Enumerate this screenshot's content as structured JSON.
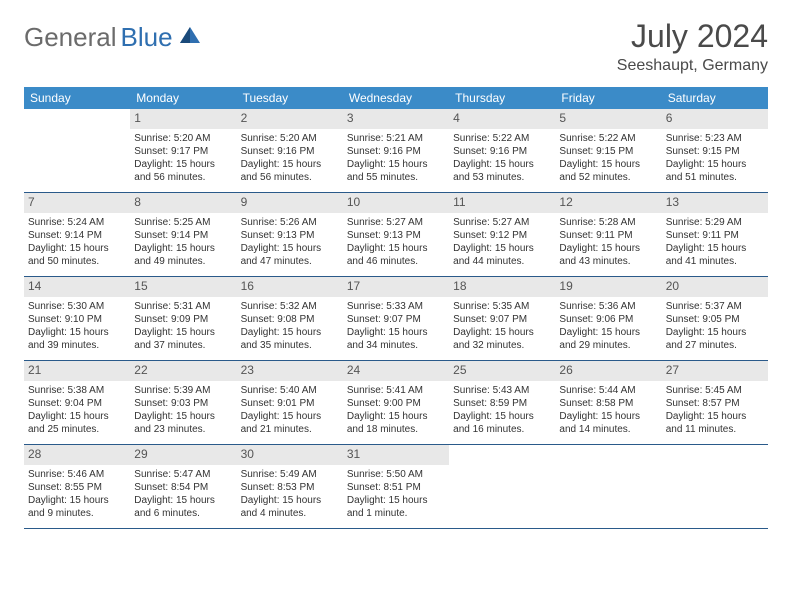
{
  "logo": {
    "textGray": "General",
    "textBlue": "Blue"
  },
  "title": "July 2024",
  "location": "Seeshaupt, Germany",
  "colors": {
    "headerBg": "#3b8bc8",
    "headerText": "#ffffff",
    "dayNumBg": "#e8e8e8",
    "borderColor": "#2a5a8a",
    "logoGray": "#6b6b6b",
    "logoBlue": "#2f6fb0"
  },
  "dayNames": [
    "Sunday",
    "Monday",
    "Tuesday",
    "Wednesday",
    "Thursday",
    "Friday",
    "Saturday"
  ],
  "startOffset": 1,
  "days": [
    {
      "n": 1,
      "sr": "5:20 AM",
      "ss": "9:17 PM",
      "dl": "15 hours and 56 minutes."
    },
    {
      "n": 2,
      "sr": "5:20 AM",
      "ss": "9:16 PM",
      "dl": "15 hours and 56 minutes."
    },
    {
      "n": 3,
      "sr": "5:21 AM",
      "ss": "9:16 PM",
      "dl": "15 hours and 55 minutes."
    },
    {
      "n": 4,
      "sr": "5:22 AM",
      "ss": "9:16 PM",
      "dl": "15 hours and 53 minutes."
    },
    {
      "n": 5,
      "sr": "5:22 AM",
      "ss": "9:15 PM",
      "dl": "15 hours and 52 minutes."
    },
    {
      "n": 6,
      "sr": "5:23 AM",
      "ss": "9:15 PM",
      "dl": "15 hours and 51 minutes."
    },
    {
      "n": 7,
      "sr": "5:24 AM",
      "ss": "9:14 PM",
      "dl": "15 hours and 50 minutes."
    },
    {
      "n": 8,
      "sr": "5:25 AM",
      "ss": "9:14 PM",
      "dl": "15 hours and 49 minutes."
    },
    {
      "n": 9,
      "sr": "5:26 AM",
      "ss": "9:13 PM",
      "dl": "15 hours and 47 minutes."
    },
    {
      "n": 10,
      "sr": "5:27 AM",
      "ss": "9:13 PM",
      "dl": "15 hours and 46 minutes."
    },
    {
      "n": 11,
      "sr": "5:27 AM",
      "ss": "9:12 PM",
      "dl": "15 hours and 44 minutes."
    },
    {
      "n": 12,
      "sr": "5:28 AM",
      "ss": "9:11 PM",
      "dl": "15 hours and 43 minutes."
    },
    {
      "n": 13,
      "sr": "5:29 AM",
      "ss": "9:11 PM",
      "dl": "15 hours and 41 minutes."
    },
    {
      "n": 14,
      "sr": "5:30 AM",
      "ss": "9:10 PM",
      "dl": "15 hours and 39 minutes."
    },
    {
      "n": 15,
      "sr": "5:31 AM",
      "ss": "9:09 PM",
      "dl": "15 hours and 37 minutes."
    },
    {
      "n": 16,
      "sr": "5:32 AM",
      "ss": "9:08 PM",
      "dl": "15 hours and 35 minutes."
    },
    {
      "n": 17,
      "sr": "5:33 AM",
      "ss": "9:07 PM",
      "dl": "15 hours and 34 minutes."
    },
    {
      "n": 18,
      "sr": "5:35 AM",
      "ss": "9:07 PM",
      "dl": "15 hours and 32 minutes."
    },
    {
      "n": 19,
      "sr": "5:36 AM",
      "ss": "9:06 PM",
      "dl": "15 hours and 29 minutes."
    },
    {
      "n": 20,
      "sr": "5:37 AM",
      "ss": "9:05 PM",
      "dl": "15 hours and 27 minutes."
    },
    {
      "n": 21,
      "sr": "5:38 AM",
      "ss": "9:04 PM",
      "dl": "15 hours and 25 minutes."
    },
    {
      "n": 22,
      "sr": "5:39 AM",
      "ss": "9:03 PM",
      "dl": "15 hours and 23 minutes."
    },
    {
      "n": 23,
      "sr": "5:40 AM",
      "ss": "9:01 PM",
      "dl": "15 hours and 21 minutes."
    },
    {
      "n": 24,
      "sr": "5:41 AM",
      "ss": "9:00 PM",
      "dl": "15 hours and 18 minutes."
    },
    {
      "n": 25,
      "sr": "5:43 AM",
      "ss": "8:59 PM",
      "dl": "15 hours and 16 minutes."
    },
    {
      "n": 26,
      "sr": "5:44 AM",
      "ss": "8:58 PM",
      "dl": "15 hours and 14 minutes."
    },
    {
      "n": 27,
      "sr": "5:45 AM",
      "ss": "8:57 PM",
      "dl": "15 hours and 11 minutes."
    },
    {
      "n": 28,
      "sr": "5:46 AM",
      "ss": "8:55 PM",
      "dl": "15 hours and 9 minutes."
    },
    {
      "n": 29,
      "sr": "5:47 AM",
      "ss": "8:54 PM",
      "dl": "15 hours and 6 minutes."
    },
    {
      "n": 30,
      "sr": "5:49 AM",
      "ss": "8:53 PM",
      "dl": "15 hours and 4 minutes."
    },
    {
      "n": 31,
      "sr": "5:50 AM",
      "ss": "8:51 PM",
      "dl": "15 hours and 1 minute."
    }
  ],
  "labels": {
    "sunrise": "Sunrise:",
    "sunset": "Sunset:",
    "daylight": "Daylight:"
  }
}
